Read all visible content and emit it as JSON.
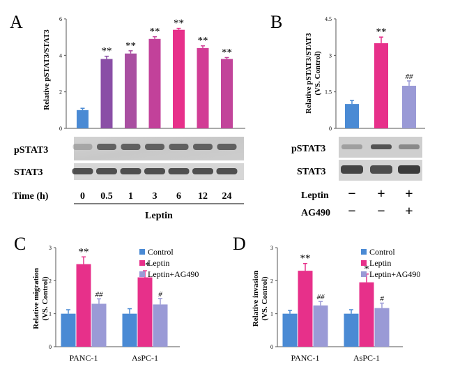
{
  "panels": {
    "A": {
      "label": "A",
      "ylabel": "Relative pSTAT3/STAT3",
      "blot_rows": [
        "pSTAT3",
        "STAT3"
      ],
      "xrow_label": "Time (h)",
      "group_label": "Leptin"
    },
    "B": {
      "label": "B",
      "ylabel_1": "Relative pSTAT3/STAT3",
      "ylabel_2": "(VS. Control)",
      "blot_rows": [
        "pSTAT3",
        "STAT3"
      ],
      "treat_rows": [
        {
          "label": "Leptin",
          "marks": [
            "−",
            "+",
            "+"
          ]
        },
        {
          "label": "AG490",
          "marks": [
            "−",
            "−",
            "+"
          ]
        }
      ]
    },
    "C": {
      "label": "C",
      "ylabel_1": "Relative migration",
      "ylabel_2": "(VS. Control)"
    },
    "D": {
      "label": "D",
      "ylabel_1": "Relative invasion",
      "ylabel_2": "(VS. Control)"
    }
  },
  "colors": {
    "control": "#4a8ad4",
    "leptin": "#e7308a",
    "ag490": "#9a9ad6",
    "a_bars": [
      "#4a8ad4",
      "#8a4ea6",
      "#a94fa1",
      "#c2419a",
      "#e7308a",
      "#d23d95",
      "#c2449a"
    ]
  },
  "chart_data": [
    {
      "panel": "A",
      "type": "bar",
      "categories": [
        "0",
        "0.5",
        "1",
        "3",
        "6",
        "12",
        "24"
      ],
      "values": [
        1.0,
        3.8,
        4.1,
        4.9,
        5.4,
        4.4,
        3.8
      ],
      "errors": [
        0.1,
        0.15,
        0.15,
        0.12,
        0.08,
        0.12,
        0.08
      ],
      "annotations": [
        "",
        "**",
        "**",
        "**",
        "**",
        "**",
        "**"
      ],
      "ylabel": "Relative pSTAT3/STAT3",
      "ylim": [
        0,
        6
      ],
      "yticks": [
        "0",
        "2",
        "4",
        "6"
      ]
    },
    {
      "panel": "B",
      "type": "bar",
      "values": [
        1.0,
        3.5,
        1.75
      ],
      "errors": [
        0.15,
        0.25,
        0.2
      ],
      "annotations": [
        "",
        "**",
        "##"
      ],
      "ylabel": "Relative pSTAT3/STAT3 (VS. Control)",
      "ylim": [
        0,
        4.5
      ],
      "yticks": [
        "0",
        "1.5",
        "3",
        "4.5"
      ]
    },
    {
      "panel": "C",
      "type": "bar",
      "categories": [
        "PANC-1",
        "AsPC-1"
      ],
      "series": [
        {
          "name": "Control",
          "values": [
            1.0,
            1.0
          ],
          "errors": [
            0.12,
            0.15
          ],
          "annotations": [
            "",
            ""
          ]
        },
        {
          "name": "Leptin",
          "values": [
            2.5,
            2.1
          ],
          "errors": [
            0.22,
            0.2
          ],
          "annotations": [
            "**",
            "**"
          ]
        },
        {
          "name": "Leptin+AG490",
          "values": [
            1.3,
            1.28
          ],
          "errors": [
            0.15,
            0.18
          ],
          "annotations": [
            "##",
            "#"
          ]
        }
      ],
      "ylabel": "Relative migration (VS. Control)",
      "ylim": [
        0,
        3
      ],
      "yticks": [
        "0",
        "1",
        "2",
        "3"
      ],
      "legend": "top-right"
    },
    {
      "panel": "D",
      "type": "bar",
      "categories": [
        "PANC-1",
        "AsPC-1"
      ],
      "series": [
        {
          "name": "Control",
          "values": [
            1.0,
            1.0
          ],
          "errors": [
            0.1,
            0.12
          ],
          "annotations": [
            "",
            ""
          ]
        },
        {
          "name": "Leptin",
          "values": [
            2.3,
            1.95
          ],
          "errors": [
            0.22,
            0.25
          ],
          "annotations": [
            "**",
            "*"
          ]
        },
        {
          "name": "Leptin+AG490",
          "values": [
            1.25,
            1.17
          ],
          "errors": [
            0.12,
            0.15
          ],
          "annotations": [
            "##",
            "#"
          ]
        }
      ],
      "ylabel": "Relative invasion (VS. Control)",
      "ylim": [
        0,
        3
      ],
      "yticks": [
        "0",
        "1",
        "2",
        "3"
      ],
      "legend": "top-right"
    }
  ]
}
